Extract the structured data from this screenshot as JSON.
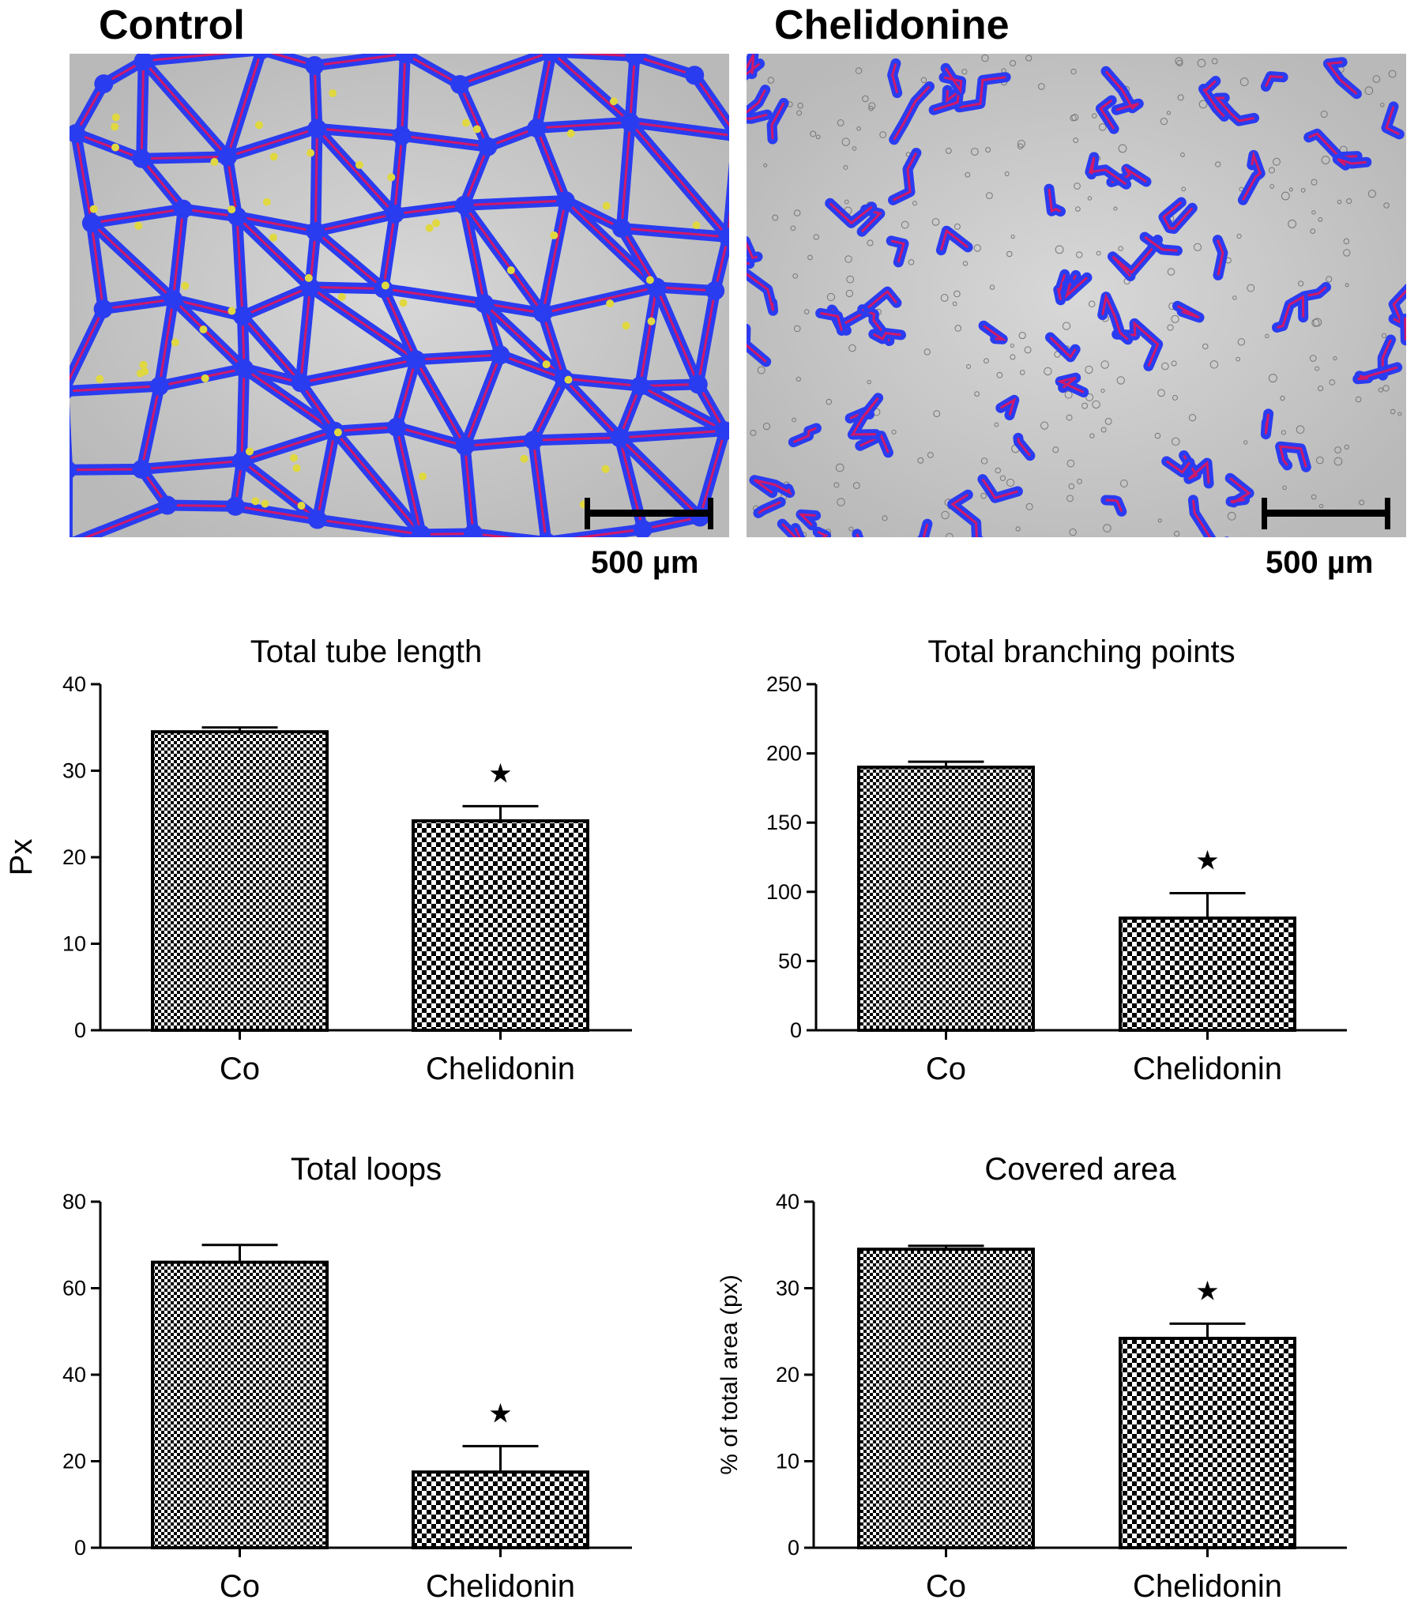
{
  "panels": [
    {
      "title": "Control",
      "scale_label": "500 µm",
      "pattern": "network"
    },
    {
      "title": "Chelidonine",
      "scale_label": "500 µm",
      "pattern": "fragments"
    }
  ],
  "colors": {
    "cells": "#2a3cf0",
    "skeleton": "#d0186a",
    "background": "#b9b9b9",
    "loop_marker": "#e0d840"
  },
  "chart_data": [
    {
      "type": "bar",
      "title": "Total tube length",
      "ylabel": "Px",
      "categories": [
        "Co",
        "Chelidonin"
      ],
      "values": [
        34.5,
        24.2
      ],
      "errors": [
        0.5,
        1.7
      ],
      "significance": [
        "",
        "★"
      ],
      "ylim": [
        0,
        40
      ],
      "yticks": [
        0,
        10,
        20,
        30,
        40
      ]
    },
    {
      "type": "bar",
      "title": "Total branching points",
      "ylabel": "",
      "categories": [
        "Co",
        "Chelidonin"
      ],
      "values": [
        190,
        81
      ],
      "errors": [
        4,
        18
      ],
      "significance": [
        "",
        "★"
      ],
      "ylim": [
        0,
        250
      ],
      "yticks": [
        0,
        50,
        100,
        150,
        200,
        250
      ]
    },
    {
      "type": "bar",
      "title": "Total loops",
      "ylabel": "",
      "categories": [
        "Co",
        "Chelidonin"
      ],
      "values": [
        66,
        17.5
      ],
      "errors": [
        4,
        6
      ],
      "significance": [
        "",
        "★"
      ],
      "ylim": [
        0,
        80
      ],
      "yticks": [
        0,
        20,
        40,
        60,
        80
      ]
    },
    {
      "type": "bar",
      "title": "Covered area",
      "ylabel": "% of total area (px)",
      "categories": [
        "Co",
        "Chelidonin"
      ],
      "values": [
        34.5,
        24.2
      ],
      "errors": [
        0.4,
        1.7
      ],
      "significance": [
        "",
        "★"
      ],
      "ylim": [
        0,
        40
      ],
      "yticks": [
        0,
        10,
        20,
        30,
        40
      ]
    }
  ]
}
